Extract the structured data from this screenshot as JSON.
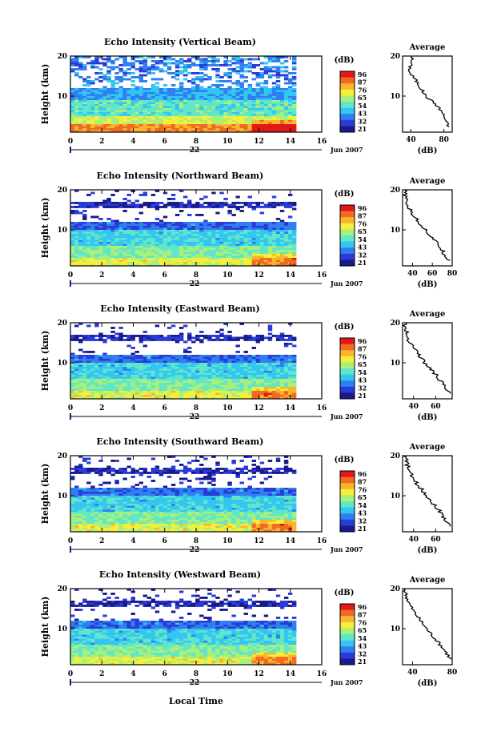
{
  "figure": {
    "xlabel": "Local Time",
    "date_tick_label": "22",
    "date_suffix": "Jun 2007",
    "colorbar_unit": "(dB)",
    "colorbar_ticks": [
      "96",
      "87",
      "76",
      "65",
      "54",
      "43",
      "32",
      "21"
    ],
    "average_title": "Average",
    "average_xlabel": "(dB)",
    "ylabel": "Height (km)",
    "colormap": [
      "#1a1a8c",
      "#2a3bd8",
      "#2f7ff0",
      "#33c6f2",
      "#60e6c8",
      "#a8f07a",
      "#f3ef3a",
      "#f8b52e",
      "#f26a22",
      "#e01818"
    ]
  },
  "chart_data": [
    {
      "type": "heatmap",
      "title": "Echo Intensity (Vertical Beam)",
      "x_ticks": [
        "0",
        "2",
        "4",
        "6",
        "8",
        "10",
        "12",
        "14",
        "16"
      ],
      "xlim": [
        0,
        16
      ],
      "data_x_range": [
        0,
        14.3
      ],
      "y_ticks": [
        "20",
        "10"
      ],
      "ylim": [
        1,
        20
      ],
      "value_range_db": [
        21,
        96
      ],
      "profile": {
        "ticks": [
          "40",
          "80"
        ],
        "xlim": [
          30,
          90
        ],
        "y_ticks": [
          "20",
          "10"
        ],
        "height_km": [
          20,
          18,
          16,
          14,
          12,
          10,
          8,
          6,
          4,
          2
        ],
        "avg_db": [
          42,
          40,
          38,
          46,
          52,
          58,
          70,
          78,
          82,
          86
        ]
      }
    },
    {
      "type": "heatmap",
      "title": "Echo Intensity (Northward Beam)",
      "x_ticks": [
        "0",
        "2",
        "4",
        "6",
        "8",
        "10",
        "12",
        "14",
        "16"
      ],
      "xlim": [
        0,
        16
      ],
      "data_x_range": [
        0,
        14.3
      ],
      "y_ticks": [
        "20",
        "10"
      ],
      "ylim": [
        1,
        20
      ],
      "value_range_db": [
        21,
        96
      ],
      "profile": {
        "ticks": [
          "40",
          "60",
          "80"
        ],
        "xlim": [
          30,
          80
        ],
        "y_ticks": [
          "20",
          "10"
        ],
        "height_km": [
          20,
          18,
          16,
          14,
          12,
          10,
          8,
          6,
          4,
          2
        ],
        "avg_db": [
          32,
          33,
          35,
          40,
          46,
          53,
          60,
          67,
          72,
          78
        ]
      }
    },
    {
      "type": "heatmap",
      "title": "Echo Intensity (Eastward Beam)",
      "x_ticks": [
        "0",
        "2",
        "4",
        "6",
        "8",
        "10",
        "12",
        "14",
        "16"
      ],
      "xlim": [
        0,
        16
      ],
      "data_x_range": [
        0,
        14.3
      ],
      "y_ticks": [
        "20",
        "10"
      ],
      "ylim": [
        1,
        20
      ],
      "value_range_db": [
        21,
        96
      ],
      "profile": {
        "ticks": [
          "40",
          "60"
        ],
        "xlim": [
          30,
          75
        ],
        "y_ticks": [
          "20",
          "10"
        ],
        "height_km": [
          20,
          18,
          16,
          14,
          12,
          10,
          8,
          6,
          4,
          2
        ],
        "avg_db": [
          32,
          33,
          35,
          40,
          45,
          50,
          57,
          63,
          68,
          73
        ]
      }
    },
    {
      "type": "heatmap",
      "title": "Echo Intensity (Southward Beam)",
      "x_ticks": [
        "0",
        "2",
        "4",
        "6",
        "8",
        "10",
        "12",
        "14",
        "16"
      ],
      "xlim": [
        0,
        16
      ],
      "data_x_range": [
        0,
        14.3
      ],
      "y_ticks": [
        "20",
        "10"
      ],
      "ylim": [
        1,
        20
      ],
      "value_range_db": [
        21,
        96
      ],
      "profile": {
        "ticks": [
          "40",
          "60"
        ],
        "xlim": [
          30,
          75
        ],
        "y_ticks": [
          "20",
          "10"
        ],
        "height_km": [
          20,
          18,
          16,
          14,
          12,
          10,
          8,
          6,
          4,
          2
        ],
        "avg_db": [
          32,
          34,
          36,
          40,
          46,
          52,
          58,
          64,
          69,
          73
        ]
      }
    },
    {
      "type": "heatmap",
      "title": "Echo Intensity (Westward Beam)",
      "x_ticks": [
        "0",
        "2",
        "4",
        "6",
        "8",
        "10",
        "12",
        "14",
        "16"
      ],
      "xlim": [
        0,
        16
      ],
      "data_x_range": [
        0,
        14.3
      ],
      "y_ticks": [
        "20",
        "10"
      ],
      "ylim": [
        1,
        20
      ],
      "value_range_db": [
        21,
        96
      ],
      "profile": {
        "ticks": [
          "40",
          "80"
        ],
        "xlim": [
          30,
          80
        ],
        "y_ticks": [
          "20",
          "10"
        ],
        "height_km": [
          20,
          18,
          16,
          14,
          12,
          10,
          8,
          6,
          4,
          2
        ],
        "avg_db": [
          32,
          34,
          37,
          42,
          48,
          54,
          61,
          68,
          74,
          79
        ]
      }
    }
  ]
}
